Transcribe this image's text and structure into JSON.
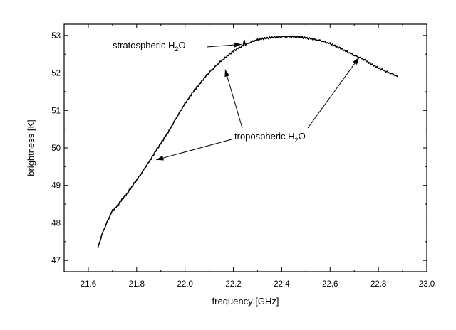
{
  "chart_data": {
    "type": "line",
    "title": "",
    "xlabel": "frequency [GHz]",
    "ylabel": "brightness [K]",
    "xlim": [
      21.5,
      23.0
    ],
    "ylim": [
      46.7,
      53.3
    ],
    "x_ticks": [
      "21.6",
      "21.8",
      "22.0",
      "22.2",
      "22.4",
      "22.6",
      "22.8",
      "23.0"
    ],
    "y_ticks": [
      "47",
      "48",
      "49",
      "50",
      "51",
      "52",
      "53"
    ],
    "grid": false,
    "legend": "none",
    "series": [
      {
        "x": [
          21.64,
          21.66,
          21.68,
          21.7,
          21.72,
          21.74,
          21.76,
          21.78,
          21.8,
          21.82,
          21.84,
          21.86,
          21.88,
          21.9,
          21.92,
          21.94,
          21.96,
          21.98,
          22.0,
          22.02,
          22.04,
          22.06,
          22.08,
          22.1,
          22.12,
          22.14,
          22.16,
          22.18,
          22.2,
          22.22,
          22.24,
          22.26,
          22.28,
          22.3,
          22.32,
          22.34,
          22.36,
          22.38,
          22.4,
          22.42,
          22.44,
          22.46,
          22.48,
          22.5,
          22.52,
          22.54,
          22.56,
          22.58,
          22.6,
          22.62,
          22.64,
          22.66,
          22.68,
          22.7,
          22.72,
          22.74,
          22.76,
          22.78,
          22.8,
          22.82,
          22.84,
          22.86,
          22.88
        ],
        "y": [
          47.35,
          47.75,
          48.05,
          48.33,
          48.45,
          48.63,
          48.78,
          48.97,
          49.15,
          49.33,
          49.53,
          49.72,
          49.93,
          50.12,
          50.32,
          50.52,
          50.75,
          50.97,
          51.18,
          51.37,
          51.55,
          51.7,
          51.87,
          52.02,
          52.14,
          52.27,
          52.37,
          52.48,
          52.58,
          52.66,
          52.72,
          52.78,
          52.84,
          52.88,
          52.91,
          52.93,
          52.95,
          52.96,
          52.97,
          52.97,
          52.97,
          52.96,
          52.95,
          52.93,
          52.91,
          52.88,
          52.86,
          52.82,
          52.78,
          52.72,
          52.67,
          52.6,
          52.54,
          52.47,
          52.42,
          52.36,
          52.28,
          52.2,
          52.13,
          52.07,
          52.01,
          51.96,
          51.9
        ]
      }
    ],
    "annotations": [
      {
        "base": "stratospheric H",
        "sub": "2",
        "tail": "O",
        "targets": [
          {
            "x": 22.245,
            "y": 52.78
          }
        ]
      },
      {
        "base": "tropospheric H",
        "sub": "2",
        "tail": "O",
        "targets": [
          {
            "x": 21.875,
            "y": 49.72
          },
          {
            "x": 22.16,
            "y": 52.13
          },
          {
            "x": 22.72,
            "y": 52.45
          }
        ]
      }
    ]
  }
}
